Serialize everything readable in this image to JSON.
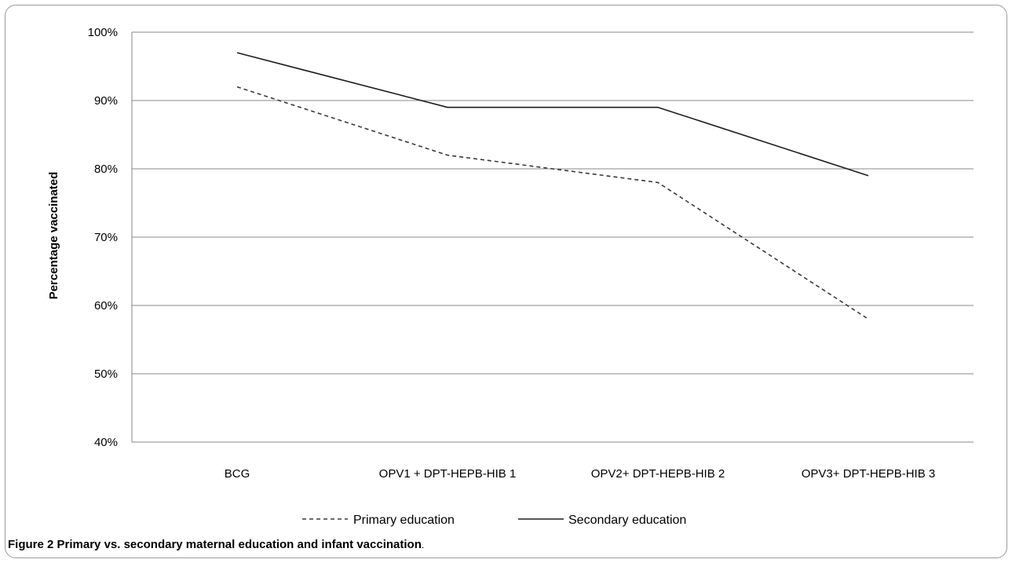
{
  "chart_data": {
    "type": "line",
    "categories": [
      "BCG",
      "OPV1 + DPT-HEPB-HIB 1",
      "OPV2+ DPT-HEPB-HIB 2",
      "OPV3+ DPT-HEPB-HIB 3"
    ],
    "series": [
      {
        "name": "Primary education",
        "values": [
          92,
          82,
          78,
          58
        ],
        "color": "#3a3a3a",
        "dashed": true
      },
      {
        "name": "Secondary education",
        "values": [
          97,
          89,
          89,
          79
        ],
        "color": "#1e1e1e",
        "dashed": false
      }
    ],
    "ylabel": "Percentage vaccinated",
    "xlabel": "",
    "ylim": [
      40,
      100
    ],
    "yticks": [
      40,
      50,
      60,
      70,
      80,
      90,
      100
    ],
    "ytick_suffix": "%",
    "grid": true,
    "legend_position": "bottom-center"
  },
  "caption": {
    "label": "Figure 2",
    "title": "Primary vs. secondary maternal education and infant vaccination",
    "end": "."
  }
}
